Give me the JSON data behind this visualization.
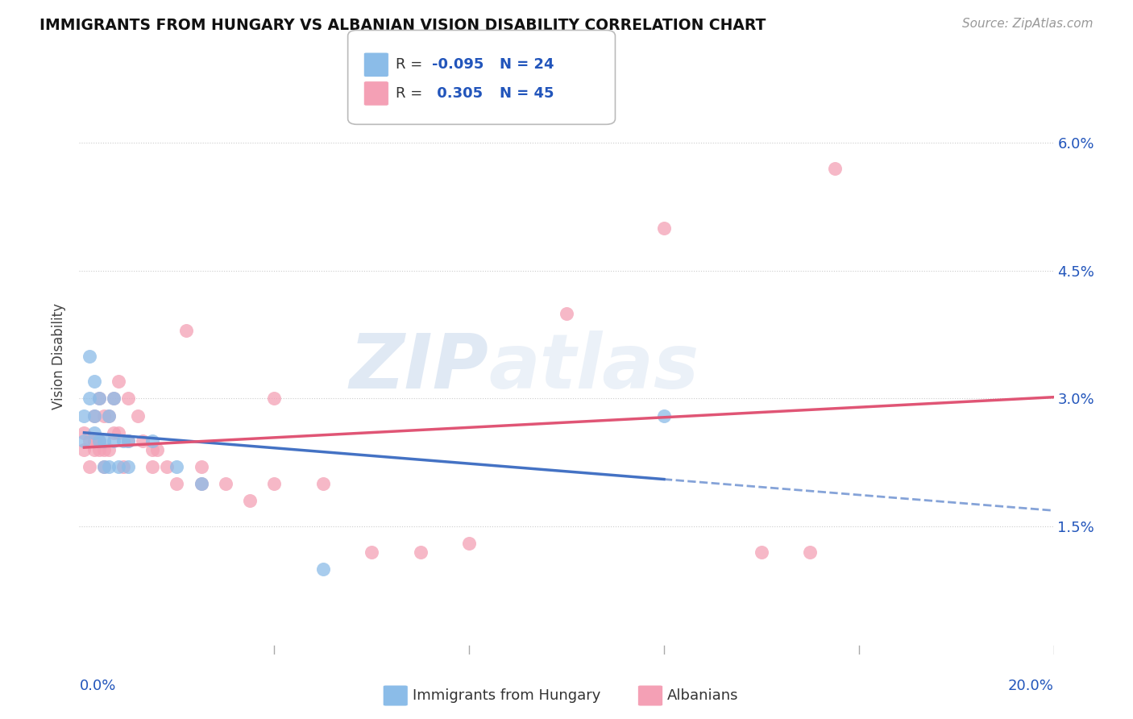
{
  "title": "IMMIGRANTS FROM HUNGARY VS ALBANIAN VISION DISABILITY CORRELATION CHART",
  "source": "Source: ZipAtlas.com",
  "ylabel": "Vision Disability",
  "xlim": [
    0.0,
    0.2
  ],
  "ylim": [
    0.0,
    0.07
  ],
  "yticks": [
    0.015,
    0.03,
    0.045,
    0.06
  ],
  "ytick_labels": [
    "1.5%",
    "3.0%",
    "4.5%",
    "6.0%"
  ],
  "xticks": [
    0.0,
    0.04,
    0.08,
    0.12,
    0.16,
    0.2
  ],
  "hungary_color": "#8BBCE8",
  "albanian_color": "#F4A0B5",
  "hungary_line_color": "#4472C4",
  "albanian_line_color": "#E05575",
  "R_hungary": -0.095,
  "N_hungary": 24,
  "R_albanian": 0.305,
  "N_albanian": 45,
  "hungary_x": [
    0.001,
    0.001,
    0.002,
    0.002,
    0.003,
    0.003,
    0.003,
    0.004,
    0.004,
    0.005,
    0.005,
    0.006,
    0.006,
    0.007,
    0.007,
    0.008,
    0.009,
    0.01,
    0.01,
    0.015,
    0.02,
    0.025,
    0.05,
    0.12
  ],
  "hungary_y": [
    0.025,
    0.028,
    0.035,
    0.03,
    0.032,
    0.026,
    0.028,
    0.03,
    0.025,
    0.025,
    0.022,
    0.028,
    0.022,
    0.03,
    0.025,
    0.022,
    0.025,
    0.025,
    0.022,
    0.025,
    0.022,
    0.02,
    0.01,
    0.028
  ],
  "albanian_x": [
    0.001,
    0.001,
    0.002,
    0.002,
    0.003,
    0.003,
    0.003,
    0.004,
    0.004,
    0.004,
    0.005,
    0.005,
    0.005,
    0.006,
    0.006,
    0.007,
    0.007,
    0.008,
    0.008,
    0.009,
    0.01,
    0.01,
    0.012,
    0.013,
    0.015,
    0.015,
    0.016,
    0.018,
    0.02,
    0.022,
    0.025,
    0.025,
    0.03,
    0.035,
    0.04,
    0.04,
    0.05,
    0.06,
    0.07,
    0.08,
    0.1,
    0.12,
    0.14,
    0.15,
    0.155
  ],
  "albanian_y": [
    0.024,
    0.026,
    0.022,
    0.025,
    0.025,
    0.024,
    0.028,
    0.025,
    0.024,
    0.03,
    0.022,
    0.024,
    0.028,
    0.024,
    0.028,
    0.026,
    0.03,
    0.026,
    0.032,
    0.022,
    0.025,
    0.03,
    0.028,
    0.025,
    0.022,
    0.024,
    0.024,
    0.022,
    0.02,
    0.038,
    0.02,
    0.022,
    0.02,
    0.018,
    0.02,
    0.03,
    0.02,
    0.012,
    0.012,
    0.013,
    0.04,
    0.05,
    0.012,
    0.012,
    0.057
  ],
  "background_color": "#FFFFFF",
  "grid_color": "#CCCCCC",
  "watermark_text": "ZIP",
  "watermark_text2": "atlas",
  "legend_R_color": "#2255BB"
}
